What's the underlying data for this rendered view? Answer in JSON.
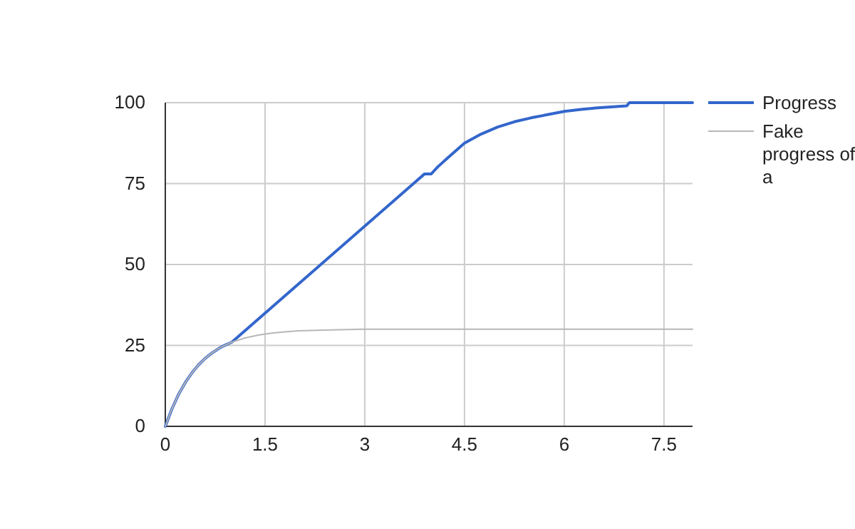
{
  "chart_data": {
    "type": "line",
    "xlim": [
      0,
      7.93
    ],
    "xticks": [
      0,
      1.5,
      3,
      4.5,
      6,
      7.5
    ],
    "ylim": [
      0,
      100
    ],
    "yticks": [
      0,
      25,
      50,
      75,
      100
    ],
    "grid": true,
    "legend": "top right",
    "marker": "none",
    "line_style": "solid",
    "series": [
      {
        "name": "Progress",
        "color": "#3366cc",
        "x": [
          0,
          0.1,
          0.2,
          0.3,
          0.4,
          0.5,
          0.6,
          0.7,
          0.8,
          0.9,
          1,
          3.9,
          4,
          4.1,
          4.25,
          4.5,
          4.75,
          5,
          5.25,
          5.5,
          5.75,
          6,
          6.25,
          6.5,
          6.94,
          6.98,
          7.93
        ],
        "values": [
          0,
          5.4,
          9.9,
          13.5,
          16.5,
          19,
          21,
          22.6,
          24,
          25.1,
          26,
          78,
          78,
          80.2,
          83,
          87.5,
          90.3,
          92.5,
          94.1,
          95.3,
          96.3,
          97.3,
          97.9,
          98.4,
          99,
          100,
          100
        ]
      },
      {
        "name": "Fake progress of a",
        "color": "#b7b7b7",
        "x": [
          0,
          0.1,
          0.2,
          0.3,
          0.4,
          0.5,
          0.6,
          0.7,
          0.8,
          0.9,
          1,
          1.2,
          1.4,
          1.6,
          1.8,
          2,
          2.5,
          3,
          7.93
        ],
        "values": [
          0,
          5.4,
          9.9,
          13.5,
          16.5,
          19,
          21,
          22.6,
          24,
          25.1,
          26,
          27.3,
          28.2,
          28.8,
          29.2,
          29.5,
          29.8,
          30,
          30
        ]
      }
    ]
  }
}
